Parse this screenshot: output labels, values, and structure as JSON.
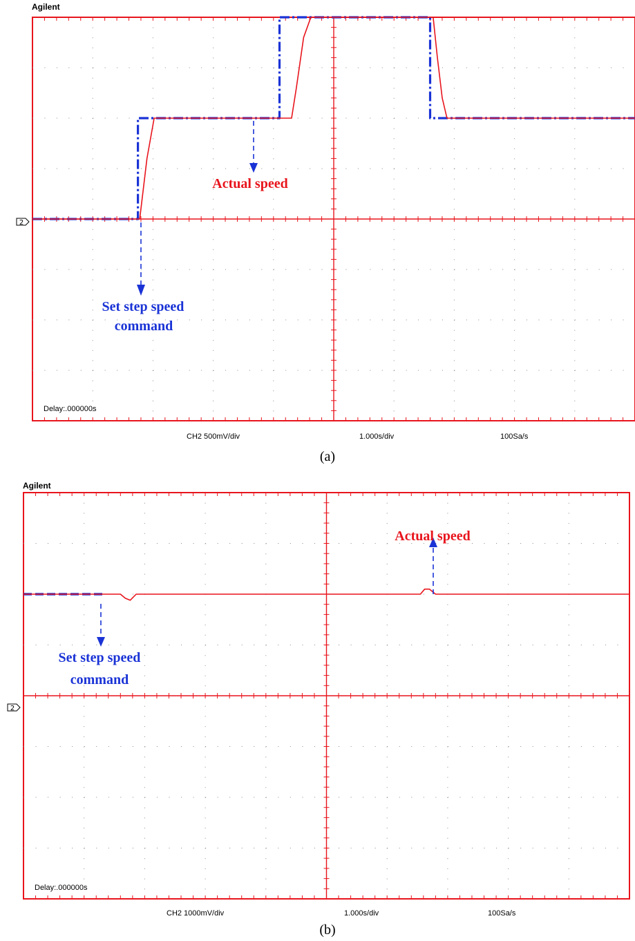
{
  "chart_data": [
    {
      "type": "line",
      "panel_caption": "(a)",
      "brand": "Agilent",
      "delay_text": "Delay:.000000s",
      "footer": {
        "channel": "CH2 500mV/div",
        "timebase": "1.000s/div",
        "sample_rate": "100Sa/s"
      },
      "channel_marker": "2",
      "grid": true,
      "x_divisions": 10,
      "y_divisions": 8,
      "xlim": [
        0,
        10
      ],
      "ylim": [
        -4,
        4
      ],
      "series": [
        {
          "role": "command",
          "color": "#1a33d6",
          "style": "dashdot",
          "x": [
            0,
            1.75,
            1.75,
            4.1,
            4.1,
            6.6,
            6.6,
            10
          ],
          "y": [
            0,
            0,
            2,
            2,
            4,
            4,
            2,
            2
          ]
        },
        {
          "role": "actual",
          "color": "#e8141c",
          "style": "solid",
          "x": [
            0,
            1.78,
            1.9,
            2.02,
            4.3,
            4.38,
            4.5,
            4.62,
            6.65,
            6.72,
            6.8,
            6.88,
            10
          ],
          "y": [
            0,
            0,
            1.2,
            2,
            2,
            2.6,
            3.6,
            4,
            4,
            3.2,
            2.4,
            2,
            2
          ]
        }
      ],
      "annotations": [
        {
          "text": "Actual speed",
          "color": "#e8141c"
        },
        {
          "text": "Set step speed",
          "color": "#1a33d6"
        },
        {
          "text": "command",
          "color": "#1a33d6"
        }
      ]
    },
    {
      "type": "line",
      "panel_caption": "(b)",
      "brand": "Agilent",
      "delay_text": "Delay:.000000s",
      "footer": {
        "channel": "CH2  1000mV/div",
        "timebase": "1.000s/div",
        "sample_rate": "100Sa/s"
      },
      "channel_marker": "2",
      "grid": true,
      "x_divisions": 10,
      "y_divisions": 8,
      "xlim": [
        0,
        10
      ],
      "ylim": [
        -4,
        4
      ],
      "series": [
        {
          "role": "command",
          "color": "#1a33d6",
          "style": "dashed",
          "x": [
            0,
            1.3
          ],
          "y": [
            2,
            2
          ]
        },
        {
          "role": "actual",
          "color": "#e8141c",
          "style": "solid",
          "x": [
            0,
            1.6,
            1.68,
            1.76,
            1.86,
            2.0,
            6.55,
            6.62,
            6.7,
            6.8,
            10
          ],
          "y": [
            2,
            2,
            1.92,
            1.88,
            2,
            2,
            2,
            2.1,
            2.1,
            2,
            2
          ]
        }
      ],
      "annotations": [
        {
          "text": "Actual speed",
          "color": "#e8141c"
        },
        {
          "text": "Set step speed",
          "color": "#1a33d6"
        },
        {
          "text": "command",
          "color": "#1a33d6"
        }
      ]
    }
  ]
}
